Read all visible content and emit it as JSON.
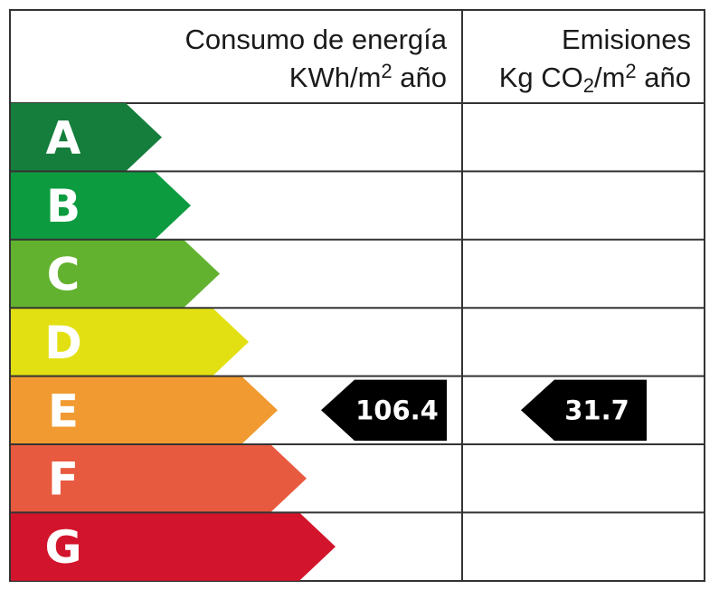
{
  "header": {
    "energy_line1": "Consumo de energía",
    "energy_unit_pre": "KWh/m",
    "energy_unit_sup": "2",
    "energy_unit_post": " año",
    "emissions_line1": "Emisiones",
    "emissions_unit_pre": "Kg CO",
    "emissions_unit_sub": "2",
    "emissions_unit_mid": "/m",
    "emissions_unit_sup": "2",
    "emissions_unit_post": " año"
  },
  "ratings": [
    {
      "letter": "A",
      "color": "#157e3c"
    },
    {
      "letter": "B",
      "color": "#0d9b40"
    },
    {
      "letter": "C",
      "color": "#62b22f"
    },
    {
      "letter": "D",
      "color": "#e2e013"
    },
    {
      "letter": "E",
      "color": "#f19a31"
    },
    {
      "letter": "F",
      "color": "#e85a3f"
    },
    {
      "letter": "G",
      "color": "#d2152c"
    }
  ],
  "energy_indicator": {
    "rating": "E",
    "value": "106.4"
  },
  "emissions_indicator": {
    "rating": "E",
    "value": "31.7"
  },
  "indicator_color": "#000000"
}
